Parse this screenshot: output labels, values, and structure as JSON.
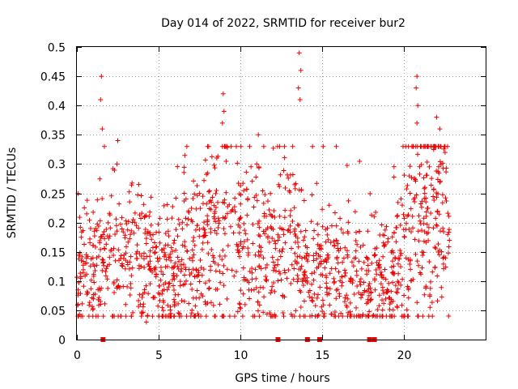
{
  "chart_data": {
    "type": "scatter",
    "title": "Day 014 of 2022, SRMTID for receiver bur2",
    "xlabel": "GPS time / hours",
    "ylabel": "SRMTID / TECUs",
    "xlim": [
      0,
      25
    ],
    "ylim": [
      0,
      0.5
    ],
    "x_ticks": [
      0,
      5,
      10,
      15,
      20
    ],
    "x_tick_labels": [
      "0",
      "5",
      "10",
      "15",
      "20"
    ],
    "y_ticks": [
      0,
      0.05,
      0.1,
      0.15,
      0.2,
      0.25,
      0.3,
      0.35,
      0.4,
      0.45,
      0.5
    ],
    "y_tick_labels": [
      "0",
      "0.05",
      "0.1",
      "0.15",
      "0.2",
      "0.25",
      "0.3",
      "0.35",
      "0.4",
      "0.45",
      "0.5"
    ],
    "grid": true,
    "marker": "plus",
    "color": "#ee0000",
    "profile": {
      "x": [
        0,
        0.5,
        1,
        1.5,
        2,
        3,
        4,
        5,
        6,
        7,
        8,
        9,
        10,
        11,
        12,
        13,
        14,
        15,
        16,
        17,
        18,
        19,
        20,
        21,
        22,
        22.8
      ],
      "mean": [
        0.105,
        0.115,
        0.11,
        0.14,
        0.15,
        0.14,
        0.13,
        0.115,
        0.12,
        0.14,
        0.17,
        0.2,
        0.17,
        0.155,
        0.15,
        0.18,
        0.13,
        0.11,
        0.115,
        0.115,
        0.105,
        0.11,
        0.16,
        0.23,
        0.22,
        0.21
      ]
    },
    "peaks": [
      {
        "x": 1.5,
        "y": 0.45
      },
      {
        "x": 1.45,
        "y": 0.41
      },
      {
        "x": 1.55,
        "y": 0.36
      },
      {
        "x": 2.5,
        "y": 0.34
      },
      {
        "x": 2.45,
        "y": 0.3
      },
      {
        "x": 4.25,
        "y": 0.03
      },
      {
        "x": 8.95,
        "y": 0.42
      },
      {
        "x": 9.0,
        "y": 0.39
      },
      {
        "x": 8.9,
        "y": 0.37
      },
      {
        "x": 11.1,
        "y": 0.35
      },
      {
        "x": 11.0,
        "y": 0.3
      },
      {
        "x": 13.6,
        "y": 0.49
      },
      {
        "x": 13.7,
        "y": 0.46
      },
      {
        "x": 13.55,
        "y": 0.43
      },
      {
        "x": 13.65,
        "y": 0.41
      },
      {
        "x": 20.8,
        "y": 0.45
      },
      {
        "x": 20.75,
        "y": 0.43
      },
      {
        "x": 20.85,
        "y": 0.4
      },
      {
        "x": 20.8,
        "y": 0.37
      },
      {
        "x": 22.0,
        "y": 0.38
      },
      {
        "x": 22.2,
        "y": 0.36
      },
      {
        "x": 21.6,
        "y": 0.055
      }
    ],
    "gap_markers_x": [
      1.6,
      12.3,
      14.1,
      14.85,
      17.9,
      18.2
    ]
  }
}
